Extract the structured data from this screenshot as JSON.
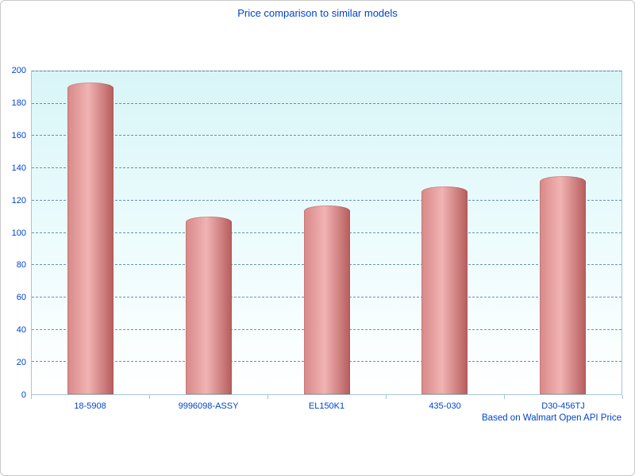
{
  "chart_data": {
    "type": "bar",
    "title": "Price comparison to similar models",
    "footnote": "Based on Walmart Open API Price",
    "categories": [
      "18-5908",
      "9996098-ASSY",
      "EL150K1",
      "435-030",
      "D30-456TJ"
    ],
    "values": [
      193,
      110,
      117,
      129,
      135
    ],
    "xlabel": "",
    "ylabel": "",
    "ylim": [
      0,
      200
    ],
    "ytick_step": 20,
    "grid": "horizontal-dashed",
    "legend": "none",
    "colors": {
      "text": "#0044cc",
      "bar_light": "#f1b3b3",
      "bar_mid": "#d88888",
      "bar_dark": "#b65c5c",
      "plot_bg_top": "#d8f5f7",
      "plot_bg_bottom": "#ffffff",
      "gridline": "#3a6ea8",
      "axis": "#a4c6d6"
    }
  }
}
